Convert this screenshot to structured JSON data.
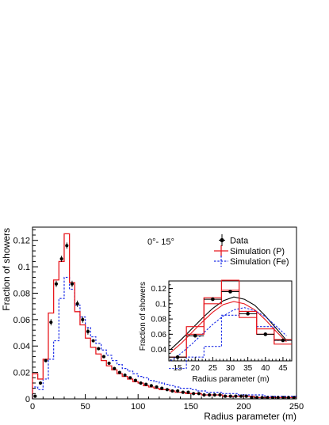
{
  "chart_data": [
    {
      "type": "line",
      "annotation": "0°- 15°",
      "xlabel": "Radius parameter (m)",
      "ylabel": "Fraction of showers",
      "xlim": [
        0,
        250
      ],
      "ylim": [
        0,
        0.13
      ],
      "xticks": [
        "0",
        "50",
        "100",
        "150",
        "200",
        "250"
      ],
      "yticks": [
        "0",
        "0.02",
        "0.04",
        "0.06",
        "0.08",
        "0.1",
        "0.12"
      ],
      "legend": {
        "placement": "top-right",
        "entries": [
          "Data",
          "Simulation (P)",
          "Simulation (Fe)"
        ]
      },
      "bin_width": 5,
      "series": [
        {
          "name": "Data",
          "style": "points",
          "color": "#000000",
          "x": [
            2.5,
            7.5,
            12.5,
            17.5,
            22.5,
            27.5,
            32.5,
            37.5,
            42.5,
            47.5,
            52.5,
            57.5,
            62.5,
            67.5,
            72.5,
            77.5,
            82.5,
            87.5,
            92.5,
            97.5,
            102.5,
            107.5,
            112.5,
            117.5,
            122.5,
            127.5,
            132.5,
            137.5,
            142.5,
            147.5,
            152.5,
            157.5,
            162.5,
            167.5,
            172.5,
            177.5,
            182.5,
            187.5,
            192.5,
            197.5,
            202.5,
            207.5,
            212.5,
            217.5,
            222.5,
            227.5,
            232.5,
            237.5,
            242.5,
            247.5
          ],
          "y": [
            0.002,
            0.012,
            0.029,
            0.058,
            0.087,
            0.106,
            0.116,
            0.087,
            0.072,
            0.06,
            0.051,
            0.044,
            0.038,
            0.032,
            0.027,
            0.023,
            0.02,
            0.018,
            0.016,
            0.014,
            0.012,
            0.011,
            0.01,
            0.009,
            0.008,
            0.007,
            0.006,
            0.006,
            0.005,
            0.005,
            0.004,
            0.004,
            0.003,
            0.003,
            0.003,
            0.003,
            0.002,
            0.002,
            0.002,
            0.002,
            0.002,
            0.001,
            0.001,
            0.001,
            0.001,
            0.001,
            0.001,
            0.001,
            0.001,
            0.001
          ]
        },
        {
          "name": "Simulation (P)",
          "style": "step",
          "color": "#e8181e",
          "y": [
            0.019,
            0.015,
            0.03,
            0.065,
            0.09,
            0.104,
            0.125,
            0.088,
            0.066,
            0.056,
            0.046,
            0.039,
            0.034,
            0.029,
            0.025,
            0.022,
            0.019,
            0.017,
            0.015,
            0.013,
            0.012,
            0.01,
            0.009,
            0.008,
            0.007,
            0.007,
            0.006,
            0.005,
            0.005,
            0.004,
            0.004,
            0.004,
            0.003,
            0.003,
            0.003,
            0.003,
            0.002,
            0.002,
            0.002,
            0.002,
            0.002,
            0.002,
            0.001,
            0.001,
            0.001,
            0.001,
            0.001,
            0.001,
            0.001,
            0.001
          ]
        },
        {
          "name": "Simulation (Fe)",
          "style": "step-dashed",
          "color": "#1e2ee8",
          "y": [
            0.009,
            0.007,
            0.015,
            0.03,
            0.044,
            0.076,
            0.092,
            0.083,
            0.071,
            0.062,
            0.054,
            0.047,
            0.042,
            0.037,
            0.033,
            0.029,
            0.026,
            0.023,
            0.021,
            0.019,
            0.017,
            0.016,
            0.014,
            0.013,
            0.012,
            0.011,
            0.01,
            0.009,
            0.008,
            0.008,
            0.007,
            0.006,
            0.006,
            0.005,
            0.005,
            0.005,
            0.004,
            0.004,
            0.004,
            0.003,
            0.003,
            0.003,
            0.003,
            0.003,
            0.002,
            0.002,
            0.002,
            0.002,
            0.002,
            0.002
          ]
        }
      ]
    },
    {
      "type": "line",
      "placement": "inset",
      "xlabel": "Radius parameter (m)",
      "ylabel": "Fraction of showers",
      "xlim": [
        12.5,
        47.5
      ],
      "ylim": [
        0.025,
        0.13
      ],
      "xticks": [
        "15",
        "20",
        "25",
        "30",
        "35",
        "40",
        "45"
      ],
      "yticks": [
        "0.04",
        "0.06",
        "0.08",
        "0.1",
        "0.12"
      ],
      "bins": [
        [
          12.5,
          17.5
        ],
        [
          17.5,
          22.5
        ],
        [
          22.5,
          27.5
        ],
        [
          27.5,
          32.5
        ],
        [
          32.5,
          37.5
        ],
        [
          37.5,
          42.5
        ],
        [
          42.5,
          47.5
        ]
      ],
      "series": [
        {
          "name": "Data",
          "style": "points",
          "x": [
            15,
            20,
            25,
            30,
            35,
            40,
            45
          ],
          "y": [
            0.03,
            0.058,
            0.106,
            0.116,
            0.087,
            0.06,
            0.052
          ]
        },
        {
          "name": "Simulation (P)",
          "style": "step-band",
          "y": [
            0.03,
            0.065,
            0.104,
            0.125,
            0.086,
            0.063,
            0.05
          ],
          "y_low": [
            0.03,
            0.06,
            0.1,
            0.118,
            0.082,
            0.06,
            0.047
          ],
          "y_high": [
            0.03,
            0.07,
            0.108,
            0.131,
            0.09,
            0.067,
            0.053
          ]
        },
        {
          "name": "Simulation (Fe)",
          "style": "step-dashed",
          "y": [
            0.015,
            0.03,
            0.044,
            0.085,
            0.09,
            0.07,
            0.052
          ]
        },
        {
          "name": "Data fit",
          "style": "curve",
          "color": "#000000",
          "x": [
            13,
            16,
            19,
            22,
            25,
            28,
            31,
            34,
            37,
            40,
            43,
            46
          ],
          "y": [
            0.04,
            0.053,
            0.067,
            0.081,
            0.094,
            0.104,
            0.109,
            0.106,
            0.098,
            0.084,
            0.068,
            0.052
          ]
        },
        {
          "name": "P fit",
          "style": "curve",
          "color": "#e8181e",
          "x": [
            13,
            16,
            19,
            22,
            25,
            28,
            31,
            34,
            37,
            40,
            43,
            46
          ],
          "y": [
            0.036,
            0.048,
            0.062,
            0.076,
            0.089,
            0.099,
            0.103,
            0.1,
            0.092,
            0.079,
            0.064,
            0.05
          ]
        },
        {
          "name": "Fe fit",
          "style": "curve-dashed",
          "color": "#1e2ee8",
          "x": [
            13,
            16,
            19,
            22,
            25,
            28,
            31,
            34,
            37,
            40,
            43,
            46
          ],
          "y": [
            0.025,
            0.035,
            0.047,
            0.06,
            0.073,
            0.084,
            0.092,
            0.095,
            0.091,
            0.083,
            0.071,
            0.058
          ]
        }
      ]
    }
  ]
}
